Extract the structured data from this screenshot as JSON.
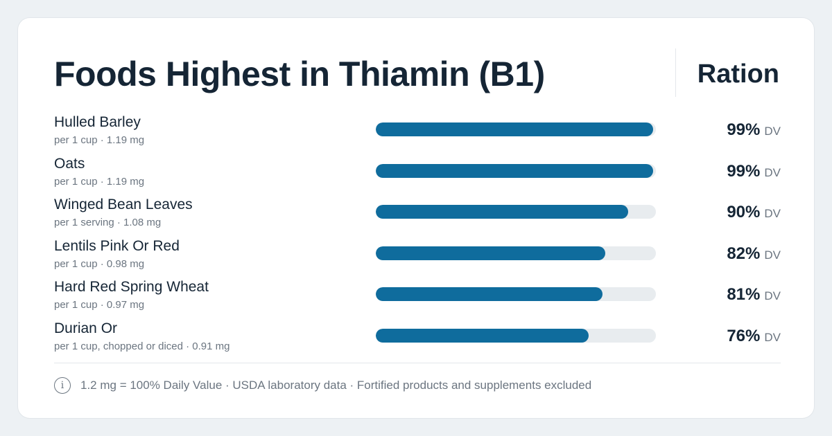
{
  "header": {
    "title": "Foods Highest in Thiamin (B1)",
    "brand": "Ration"
  },
  "chart_data": {
    "type": "bar",
    "orientation": "horizontal",
    "title": "Foods Highest in Thiamin (B1)",
    "unit": "DV",
    "xlim": [
      0,
      100
    ],
    "rows": [
      {
        "name": "Hulled Barley",
        "detail": "per 1 cup · 1.19 mg",
        "value": 99,
        "label": "99%"
      },
      {
        "name": "Oats",
        "detail": "per 1 cup · 1.19 mg",
        "value": 99,
        "label": "99%"
      },
      {
        "name": "Winged Bean Leaves",
        "detail": "per 1 serving · 1.08 mg",
        "value": 90,
        "label": "90%"
      },
      {
        "name": "Lentils Pink Or Red",
        "detail": "per 1 cup · 0.98 mg",
        "value": 82,
        "label": "82%"
      },
      {
        "name": "Hard Red Spring Wheat",
        "detail": "per 1 cup · 0.97 mg",
        "value": 81,
        "label": "81%"
      },
      {
        "name": "Durian Or",
        "detail": "per 1 cup, chopped or diced · 0.91 mg",
        "value": 76,
        "label": "76%"
      }
    ]
  },
  "footer": {
    "icon": "info-icon",
    "note": "1.2 mg = 100% Daily Value · USDA laboratory data · Fortified products and supplements excluded"
  },
  "colors": {
    "bar": "#0f6c9d",
    "track": "#e8ecef"
  }
}
